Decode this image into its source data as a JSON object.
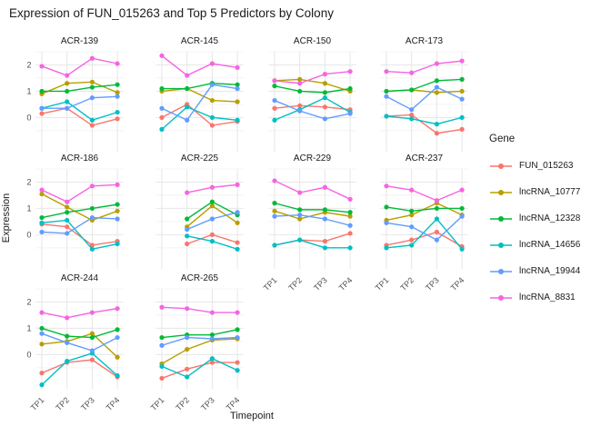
{
  "title": "Expression of FUN_015263 and Top 5 Predictors by Colony",
  "x_axis_title": "Timepoint",
  "y_axis_title": "Expression",
  "legend": {
    "title": "Gene",
    "items": [
      {
        "label": "FUN_015263",
        "color": "#F8766D"
      },
      {
        "label": "lncRNA_10777",
        "color": "#B79F00"
      },
      {
        "label": "lncRNA_12328",
        "color": "#00BA38"
      },
      {
        "label": "lncRNA_14656",
        "color": "#00BFC4"
      },
      {
        "label": "lncRNA_19944",
        "color": "#619CFF"
      },
      {
        "label": "lncRNA_8831",
        "color": "#F564E2"
      }
    ]
  },
  "chart_data": {
    "type": "line",
    "title": "Expression of FUN_015263 and Top 5 Predictors by Colony",
    "xlabel": "Timepoint",
    "ylabel": "Expression",
    "facet_variable": "Colony",
    "legend_title": "Gene",
    "legend_position": "right",
    "grid": "on",
    "x_categories": [
      "TP1",
      "TP2",
      "TP3",
      "TP4"
    ],
    "yticks": [
      0,
      1,
      2
    ],
    "ylim": [
      -1.3,
      2.5
    ],
    "series": [
      "FUN_015263",
      "lncRNA_10777",
      "lncRNA_12328",
      "lncRNA_14656",
      "lncRNA_19944",
      "lncRNA_8831"
    ],
    "facets": [
      {
        "colony": "ACR-139",
        "values": {
          "FUN_015263": [
            0.15,
            0.35,
            -0.3,
            -0.05
          ],
          "lncRNA_10777": [
            0.9,
            1.3,
            1.35,
            0.95
          ],
          "lncRNA_12328": [
            1.0,
            1.0,
            1.15,
            1.25
          ],
          "lncRNA_14656": [
            0.35,
            0.6,
            -0.1,
            0.2
          ],
          "lncRNA_19944": [
            0.35,
            0.35,
            0.75,
            0.8
          ],
          "lncRNA_8831": [
            1.95,
            1.6,
            2.25,
            2.05
          ]
        }
      },
      {
        "colony": "ACR-145",
        "values": {
          "FUN_015263": [
            0.0,
            0.5,
            -0.3,
            -0.15
          ],
          "lncRNA_10777": [
            1.0,
            1.1,
            0.65,
            0.6
          ],
          "lncRNA_12328": [
            1.1,
            1.1,
            1.3,
            1.25
          ],
          "lncRNA_14656": [
            -0.45,
            0.4,
            0.0,
            -0.1
          ],
          "lncRNA_19944": [
            0.35,
            -0.1,
            1.25,
            1.1
          ],
          "lncRNA_8831": [
            2.35,
            1.6,
            2.05,
            1.9
          ]
        }
      },
      {
        "colony": "ACR-150",
        "values": {
          "FUN_015263": [
            0.35,
            0.45,
            0.4,
            0.3
          ],
          "lncRNA_10777": [
            1.4,
            1.45,
            1.3,
            1.0
          ],
          "lncRNA_12328": [
            1.2,
            1.0,
            0.95,
            1.1
          ],
          "lncRNA_14656": [
            -0.1,
            0.3,
            0.75,
            0.2
          ],
          "lncRNA_19944": [
            0.65,
            0.25,
            -0.05,
            0.15
          ],
          "lncRNA_8831": [
            1.4,
            1.3,
            1.65,
            1.75
          ]
        }
      },
      {
        "colony": "ACR-173",
        "values": {
          "FUN_015263": [
            0.05,
            0.1,
            -0.6,
            -0.45
          ],
          "lncRNA_10777": [
            1.0,
            1.05,
            0.95,
            1.0
          ],
          "lncRNA_12328": [
            1.0,
            1.05,
            1.4,
            1.45
          ],
          "lncRNA_14656": [
            0.05,
            -0.05,
            -0.25,
            0.0
          ],
          "lncRNA_19944": [
            0.8,
            0.3,
            1.15,
            0.7
          ],
          "lncRNA_8831": [
            1.75,
            1.7,
            2.05,
            2.15
          ]
        }
      },
      {
        "colony": "ACR-186",
        "values": {
          "FUN_015263": [
            0.4,
            0.3,
            -0.4,
            -0.25
          ],
          "lncRNA_10777": [
            1.55,
            1.05,
            0.55,
            0.9
          ],
          "lncRNA_12328": [
            0.65,
            0.85,
            1.0,
            1.15
          ],
          "lncRNA_14656": [
            0.45,
            0.55,
            -0.55,
            -0.35
          ],
          "lncRNA_19944": [
            0.1,
            0.05,
            0.65,
            0.6
          ],
          "lncRNA_8831": [
            1.7,
            1.25,
            1.85,
            1.9
          ]
        }
      },
      {
        "colony": "ACR-225",
        "values": {
          "FUN_015263": [
            null,
            -0.35,
            0.0,
            -0.3
          ],
          "lncRNA_10777": [
            null,
            0.3,
            1.1,
            0.45
          ],
          "lncRNA_12328": [
            null,
            0.6,
            1.25,
            0.75
          ],
          "lncRNA_14656": [
            null,
            -0.05,
            -0.25,
            -0.55
          ],
          "lncRNA_19944": [
            null,
            0.2,
            0.6,
            0.85
          ],
          "lncRNA_8831": [
            null,
            1.6,
            1.8,
            1.9
          ]
        }
      },
      {
        "colony": "ACR-229",
        "values": {
          "FUN_015263": [
            -0.4,
            -0.2,
            -0.25,
            0.05
          ],
          "lncRNA_10777": [
            0.9,
            0.6,
            0.85,
            0.7
          ],
          "lncRNA_12328": [
            1.2,
            0.95,
            0.95,
            0.85
          ],
          "lncRNA_14656": [
            -0.4,
            -0.2,
            -0.5,
            -0.5
          ],
          "lncRNA_19944": [
            0.7,
            0.75,
            0.6,
            0.35
          ],
          "lncRNA_8831": [
            2.05,
            1.6,
            1.8,
            1.35
          ]
        }
      },
      {
        "colony": "ACR-237",
        "values": {
          "FUN_015263": [
            -0.4,
            -0.2,
            0.1,
            -0.45
          ],
          "lncRNA_10777": [
            0.55,
            0.75,
            1.2,
            0.75
          ],
          "lncRNA_12328": [
            1.05,
            0.9,
            1.0,
            1.0
          ],
          "lncRNA_14656": [
            -0.5,
            -0.4,
            0.6,
            -0.55
          ],
          "lncRNA_19944": [
            0.45,
            0.3,
            -0.2,
            0.7
          ],
          "lncRNA_8831": [
            1.85,
            1.7,
            1.3,
            1.7
          ]
        }
      },
      {
        "colony": "ACR-244",
        "values": {
          "FUN_015263": [
            -0.7,
            -0.3,
            -0.2,
            -0.85
          ],
          "lncRNA_10777": [
            0.4,
            0.5,
            0.8,
            -0.1
          ],
          "lncRNA_12328": [
            1.0,
            0.7,
            0.65,
            0.95
          ],
          "lncRNA_14656": [
            -1.15,
            -0.25,
            0.05,
            -0.8
          ],
          "lncRNA_19944": [
            0.8,
            0.45,
            0.15,
            0.65
          ],
          "lncRNA_8831": [
            1.6,
            1.4,
            1.6,
            1.75
          ]
        }
      },
      {
        "colony": "ACR-265",
        "values": {
          "FUN_015263": [
            -0.9,
            -0.55,
            -0.3,
            -0.3
          ],
          "lncRNA_10777": [
            -0.35,
            0.2,
            0.55,
            0.6
          ],
          "lncRNA_12328": [
            0.65,
            0.75,
            0.75,
            0.95
          ],
          "lncRNA_14656": [
            -0.45,
            -0.85,
            -0.15,
            -0.6
          ],
          "lncRNA_19944": [
            0.35,
            0.65,
            0.6,
            0.65
          ],
          "lncRNA_8831": [
            1.8,
            1.75,
            1.6,
            1.6
          ]
        }
      }
    ]
  }
}
